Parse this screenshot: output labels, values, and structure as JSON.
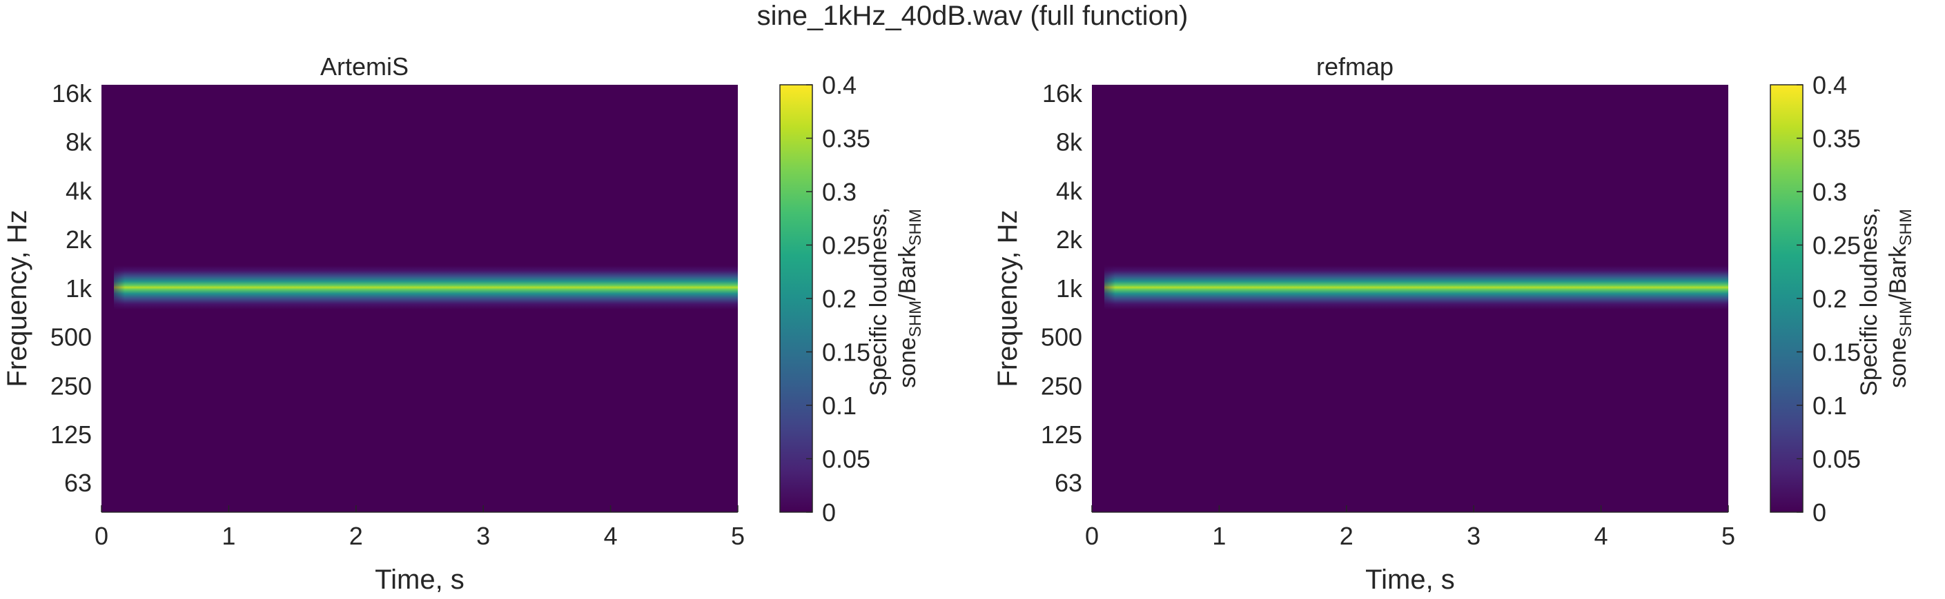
{
  "figure": {
    "title": "sine_1kHz_40dB.wav (full function)"
  },
  "chart_data": [
    {
      "type": "heatmap",
      "title": "ArtemiS",
      "xlabel": "Time, s",
      "ylabel": "Frequency, Hz",
      "xlim": [
        0,
        5
      ],
      "x_ticks": [
        0,
        1,
        2,
        3,
        4,
        5
      ],
      "x_tick_labels": [
        "0",
        "1",
        "2",
        "3",
        "4",
        "5"
      ],
      "y_scale": "log",
      "y_ticks": [
        63,
        125,
        250,
        500,
        1000,
        2000,
        4000,
        8000,
        16000
      ],
      "y_tick_labels": [
        "63",
        "125",
        "250",
        "500",
        "1k",
        "2k",
        "4k",
        "8k",
        "16k"
      ],
      "colorbar": {
        "label": "Specific loudness,",
        "label_line2": {
          "main1": "sone",
          "sub1": "SHM",
          "main2": "/Bark",
          "sub2": "SHM"
        },
        "range": [
          0,
          0.4
        ],
        "ticks": [
          0,
          0.05,
          0.1,
          0.15,
          0.2,
          0.25,
          0.3,
          0.35,
          0.4
        ],
        "tick_labels": [
          "0",
          "0.05",
          "0.1",
          "0.15",
          "0.2",
          "0.25",
          "0.3",
          "0.35",
          "0.4"
        ],
        "colormap": "viridis"
      },
      "band": {
        "center_hz": 1000,
        "onset_s": 0.1,
        "end_s": 5,
        "peak_value": 0.37,
        "edge_value": 0.0
      }
    },
    {
      "type": "heatmap",
      "title": "refmap",
      "xlabel": "Time, s",
      "ylabel": "Frequency, Hz",
      "xlim": [
        0,
        5
      ],
      "x_ticks": [
        0,
        1,
        2,
        3,
        4,
        5
      ],
      "x_tick_labels": [
        "0",
        "1",
        "2",
        "3",
        "4",
        "5"
      ],
      "y_scale": "log",
      "y_ticks": [
        63,
        125,
        250,
        500,
        1000,
        2000,
        4000,
        8000,
        16000
      ],
      "y_tick_labels": [
        "63",
        "125",
        "250",
        "500",
        "1k",
        "2k",
        "4k",
        "8k",
        "16k"
      ],
      "colorbar": {
        "label": "Specific loudness,",
        "label_line2": {
          "main1": "sone",
          "sub1": "SHM",
          "main2": "/Bark",
          "sub2": "SHM"
        },
        "range": [
          0,
          0.4
        ],
        "ticks": [
          0,
          0.05,
          0.1,
          0.15,
          0.2,
          0.25,
          0.3,
          0.35,
          0.4
        ],
        "tick_labels": [
          "0",
          "0.05",
          "0.1",
          "0.15",
          "0.2",
          "0.25",
          "0.3",
          "0.35",
          "0.4"
        ],
        "colormap": "viridis"
      },
      "band": {
        "center_hz": 1000,
        "onset_s": 0.1,
        "end_s": 5,
        "peak_value": 0.37,
        "edge_value": 0.0
      }
    }
  ],
  "colors": {
    "viridis_low": "#440154",
    "viridis_mid": "#21918c",
    "viridis_high": "#fde725",
    "axis": "#262626"
  }
}
